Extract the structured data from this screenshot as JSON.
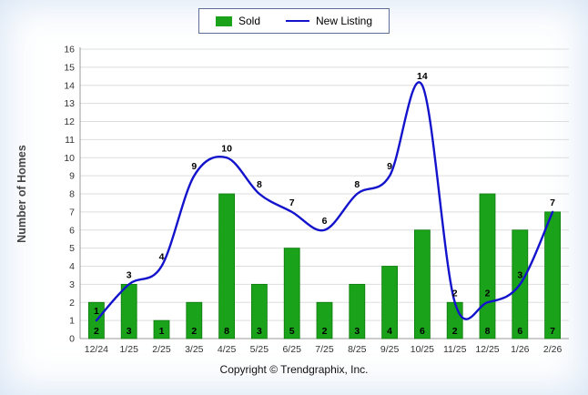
{
  "chart_data": {
    "type": "bar",
    "categories": [
      "12/24",
      "1/25",
      "2/25",
      "3/25",
      "4/25",
      "5/25",
      "6/25",
      "7/25",
      "8/25",
      "9/25",
      "10/25",
      "11/25",
      "12/25",
      "1/26",
      "2/26"
    ],
    "series": [
      {
        "name": "Sold",
        "type": "bar",
        "color": "#1aa31a",
        "border_color": "#0d7a0d",
        "values": [
          2,
          3,
          1,
          2,
          8,
          3,
          5,
          2,
          3,
          4,
          6,
          2,
          8,
          6,
          7
        ]
      },
      {
        "name": "New Listing",
        "type": "line",
        "color": "#1313cc",
        "values": [
          1,
          3,
          4,
          9,
          10,
          8,
          7,
          6,
          8,
          9,
          14,
          2,
          2,
          3,
          7
        ]
      }
    ],
    "title": "",
    "xlabel": "",
    "ylabel": "Number of Homes",
    "ylim": [
      0,
      16
    ],
    "ytick_step": 1,
    "grid": true,
    "legend_position": "top",
    "label_color": "#000000",
    "axis_color": "#999999",
    "grid_color": "#dddddd",
    "tick_color": "#333333"
  },
  "footer": {
    "copyright": "Copyright © Trendgraphix, Inc."
  }
}
